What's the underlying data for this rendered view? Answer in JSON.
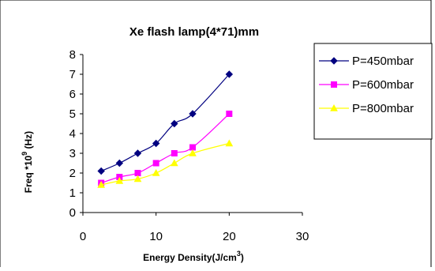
{
  "chart_data": {
    "type": "line",
    "title": "Xe flash lamp(4*71)mm",
    "xlabel": "Energy Density(J/cm3)",
    "xlabel_parts": {
      "main": "Energy Density(J/cm",
      "sup": "3",
      "end": ")"
    },
    "ylabel": "Freq *109 (Hz)",
    "ylabel_parts": {
      "main": "Freq *10",
      "sup": "9",
      "end": " (Hz)"
    },
    "xlim": [
      0,
      30
    ],
    "ylim": [
      0,
      8
    ],
    "x_ticks": [
      "0",
      "10",
      "20",
      "30"
    ],
    "y_ticks": [
      "0",
      "1",
      "2",
      "3",
      "4",
      "5",
      "6",
      "7",
      "8"
    ],
    "grid": false,
    "legend_position": "right",
    "series": [
      {
        "name": "P=450mbar",
        "color": "#000080",
        "marker": "diamond",
        "x": [
          2.5,
          5,
          7.5,
          10,
          12.5,
          15,
          20
        ],
        "y": [
          2.1,
          2.5,
          3.0,
          3.5,
          4.5,
          5.0,
          7.0
        ]
      },
      {
        "name": "P=600mbar",
        "color": "#FF00FF",
        "marker": "square",
        "x": [
          2.5,
          5,
          7.5,
          10,
          12.5,
          15,
          20
        ],
        "y": [
          1.5,
          1.8,
          2.0,
          2.5,
          3.0,
          3.3,
          5.0
        ]
      },
      {
        "name": "P=800mbar",
        "color": "#FFFF00",
        "marker": "triangle",
        "x": [
          2.5,
          5,
          7.5,
          10,
          12.5,
          15,
          20
        ],
        "y": [
          1.4,
          1.6,
          1.7,
          2.0,
          2.5,
          3.0,
          3.5
        ]
      }
    ]
  }
}
